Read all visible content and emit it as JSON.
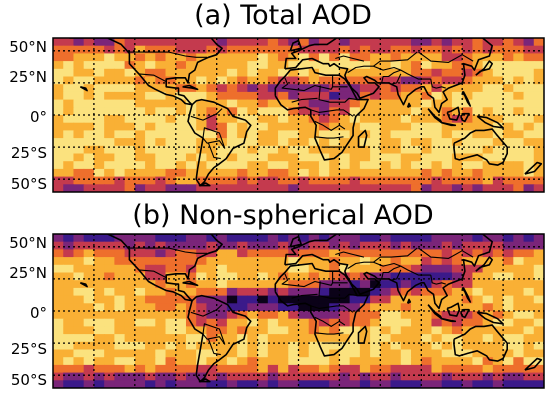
{
  "panels": [
    {
      "title": "(a) Total AOD",
      "lat_labels": [
        "50°N",
        "25°N",
        "0°",
        "25°S",
        "50°S"
      ]
    },
    {
      "title": "(b) Non-spherical AOD",
      "lat_labels": [
        "50°N",
        "25°N",
        "0°",
        "25°S",
        "50°S"
      ]
    }
  ],
  "colormap": [
    "#fdf6c8",
    "#fbe27e",
    "#f9b035",
    "#ee6f2c",
    "#c43a4e",
    "#7a2579",
    "#3b1a8a",
    "#0b0218"
  ]
}
